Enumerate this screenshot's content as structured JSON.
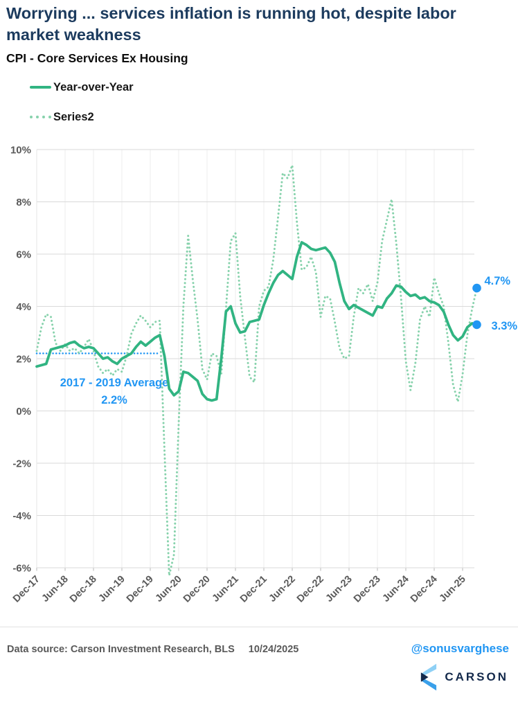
{
  "header": {
    "title": "Worrying ... services inflation is running hot, despite labor market weakness",
    "subtitle": "CPI - Core Services Ex Housing"
  },
  "legend": [
    {
      "label": "Year-over-Year",
      "style": "solid"
    },
    {
      "label": "Series2",
      "style": "dotted"
    }
  ],
  "colors": {
    "title_navy": "#1c3b5e",
    "solid_line": "#31b482",
    "dotted_line": "#87d2ac",
    "blue_accent": "#2196f3",
    "axis_text": "#595959",
    "gridline": "#d9d9d9",
    "vertical_gridline": "#eeeeee",
    "logo_navy": "#13294b",
    "logo_light_blue": "#8ed0f5",
    "logo_mid_blue": "#3aa0ea"
  },
  "chart_data": {
    "type": "line",
    "title": "CPI - Core Services Ex Housing",
    "x_start": "Dec-17",
    "x_end": "Sep-25",
    "frequency": "monthly",
    "x_tick_labels": [
      "Dec-17",
      "Jun-18",
      "Dec-18",
      "Jun-19",
      "Dec-19",
      "Jun-20",
      "Dec-20",
      "Jun-21",
      "Dec-21",
      "Jun-22",
      "Dec-22",
      "Jun-23",
      "Dec-23",
      "Jun-24",
      "Dec-24",
      "Jun-25"
    ],
    "y_tick_values": [
      10,
      8,
      6,
      4,
      2,
      0,
      -2,
      -4,
      -6
    ],
    "y_tick_labels": [
      "10%",
      "8%",
      "6%",
      "4%",
      "2%",
      "0%",
      "-2%",
      "-4%",
      "-6%"
    ],
    "ylim": [
      -6,
      10
    ],
    "grid": "horizontal-strong, vertical-faint",
    "legend_position": "top-left",
    "series": [
      {
        "name": "Year-over-Year",
        "style": "solid",
        "values": [
          1.7,
          1.75,
          1.8,
          2.35,
          2.4,
          2.45,
          2.5,
          2.6,
          2.65,
          2.5,
          2.4,
          2.45,
          2.4,
          2.2,
          2.0,
          2.05,
          1.9,
          1.8,
          2.0,
          2.1,
          2.2,
          2.45,
          2.65,
          2.5,
          2.65,
          2.8,
          2.9,
          2.1,
          0.85,
          0.6,
          0.75,
          1.5,
          1.45,
          1.3,
          1.15,
          0.65,
          0.45,
          0.4,
          0.45,
          2.0,
          3.8,
          4.0,
          3.35,
          3.0,
          3.05,
          3.4,
          3.45,
          3.5,
          4.05,
          4.5,
          4.9,
          5.2,
          5.35,
          5.2,
          5.05,
          5.9,
          6.45,
          6.35,
          6.2,
          6.15,
          6.2,
          6.25,
          6.05,
          5.7,
          4.9,
          4.2,
          3.9,
          4.05,
          3.95,
          3.85,
          3.75,
          3.65,
          4.0,
          3.95,
          4.3,
          4.5,
          4.8,
          4.75,
          4.55,
          4.4,
          4.45,
          4.3,
          4.35,
          4.2,
          4.15,
          4.05,
          3.8,
          3.3,
          2.9,
          2.7,
          2.85,
          3.2,
          3.35,
          3.3
        ]
      },
      {
        "name": "Series2",
        "style": "dotted",
        "values": [
          2.3,
          3.2,
          3.7,
          3.6,
          2.6,
          2.3,
          2.55,
          2.3,
          2.4,
          2.2,
          2.45,
          2.75,
          2.3,
          1.7,
          1.45,
          1.6,
          1.35,
          1.6,
          1.5,
          2.1,
          2.95,
          3.35,
          3.65,
          3.45,
          3.2,
          3.4,
          3.45,
          -1.5,
          -6.3,
          -5.5,
          -0.5,
          4.0,
          6.7,
          5.0,
          3.5,
          1.6,
          1.2,
          2.2,
          2.1,
          1.4,
          3.9,
          6.5,
          6.8,
          4.4,
          2.8,
          1.3,
          1.1,
          4.0,
          4.6,
          4.75,
          5.8,
          7.4,
          9.1,
          8.9,
          9.4,
          7.2,
          5.4,
          5.5,
          5.9,
          5.3,
          3.6,
          4.4,
          4.3,
          3.4,
          2.4,
          2.0,
          2.1,
          3.6,
          4.7,
          4.5,
          4.85,
          4.2,
          4.9,
          6.5,
          7.3,
          8.1,
          6.4,
          4.3,
          1.9,
          0.8,
          1.8,
          3.5,
          4.0,
          3.6,
          5.1,
          4.5,
          4.0,
          2.6,
          1.0,
          0.35,
          1.4,
          2.9,
          3.9,
          4.7
        ]
      }
    ],
    "average_annotation": {
      "text_line1": "2017 - 2019 Average",
      "text_line2": "2.2%",
      "value": 2.2,
      "start_month_index": 0,
      "end_month_index": 26
    },
    "end_labels": [
      {
        "series": "Series2",
        "text": "4.7%"
      },
      {
        "series": "Year-over-Year",
        "text": "3.3%"
      }
    ]
  },
  "footer": {
    "source": "Data source: Carson Investment Research, BLS",
    "date": "10/24/2025",
    "handle": "@sonusvarghese",
    "brand": "CARSON"
  }
}
